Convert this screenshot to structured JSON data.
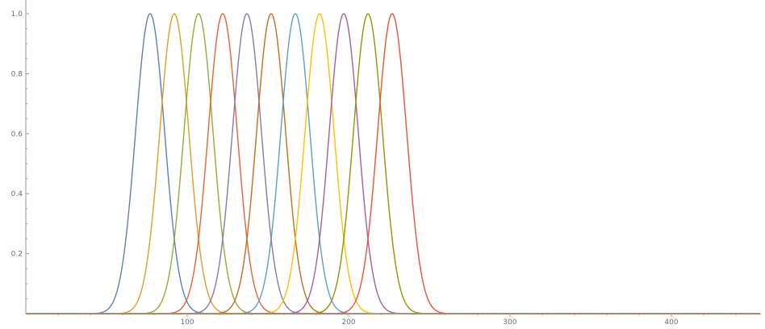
{
  "chart_data": {
    "type": "line",
    "title": "",
    "xlabel": "",
    "ylabel": "",
    "xlim": [
      0,
      455
    ],
    "ylim": [
      0,
      1.0
    ],
    "grid": false,
    "legend": "none",
    "x_ticks": [
      100,
      200,
      300,
      400
    ],
    "x_tick_labels": [
      "100",
      "200",
      "300",
      "400"
    ],
    "y_ticks": [
      0.2,
      0.4,
      0.6,
      0.8,
      1.0
    ],
    "y_tick_labels": [
      "0.2",
      "0.4",
      "0.6",
      "0.8",
      "1.0"
    ],
    "curve_shape": "gaussian",
    "sigma": 9,
    "series": [
      {
        "peak_x": 77,
        "peak_y": 1.0,
        "color": "#5e81b5"
      },
      {
        "peak_x": 92,
        "peak_y": 1.0,
        "color": "#e19c24"
      },
      {
        "peak_x": 107,
        "peak_y": 1.0,
        "color": "#8fb032"
      },
      {
        "peak_x": 122,
        "peak_y": 1.0,
        "color": "#eb6235"
      },
      {
        "peak_x": 137,
        "peak_y": 1.0,
        "color": "#8778b3"
      },
      {
        "peak_x": 152,
        "peak_y": 1.0,
        "color": "#c56e1a"
      },
      {
        "peak_x": 167,
        "peak_y": 1.0,
        "color": "#5d9ec7"
      },
      {
        "peak_x": 182,
        "peak_y": 1.0,
        "color": "#ffbf00"
      },
      {
        "peak_x": 197,
        "peak_y": 1.0,
        "color": "#a5609d"
      },
      {
        "peak_x": 212,
        "peak_y": 1.0,
        "color": "#929600"
      },
      {
        "peak_x": 227,
        "peak_y": 1.0,
        "color": "#e95536"
      }
    ]
  }
}
